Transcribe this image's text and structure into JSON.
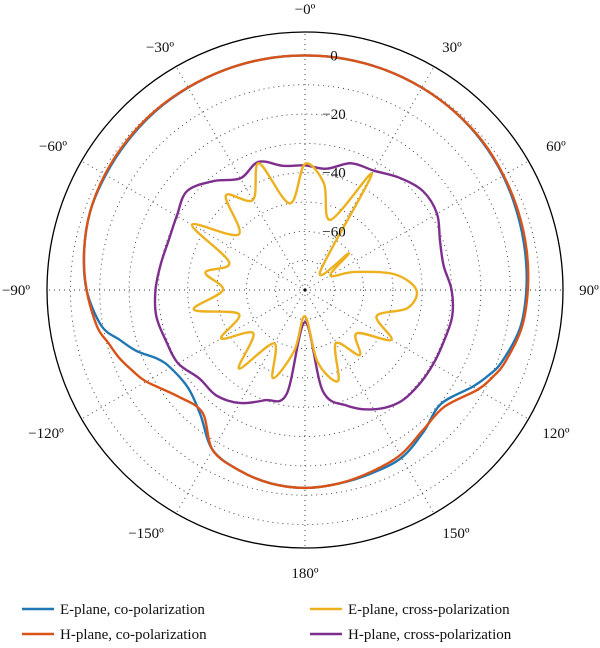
{
  "chart_data": {
    "type": "polar-line",
    "title": "",
    "angle_unit": "deg",
    "angle_ticks": [
      {
        "angle": 0,
        "label": "−0º"
      },
      {
        "angle": 30,
        "label": "30º"
      },
      {
        "angle": 60,
        "label": "60º"
      },
      {
        "angle": 90,
        "label": "90º"
      },
      {
        "angle": 120,
        "label": "120º"
      },
      {
        "angle": 150,
        "label": "150º"
      },
      {
        "angle": 180,
        "label": "180º"
      },
      {
        "angle": -150,
        "label": "−150º"
      },
      {
        "angle": -120,
        "label": "−120º"
      },
      {
        "angle": -90,
        "label": "−90º"
      },
      {
        "angle": -60,
        "label": "−60º"
      },
      {
        "angle": -30,
        "label": "−30º"
      }
    ],
    "radial_ticks": [
      {
        "value": 0,
        "label": "0"
      },
      {
        "value": -20,
        "label": "−20"
      },
      {
        "value": -40,
        "label": "−40"
      },
      {
        "value": -60,
        "label": "−60"
      }
    ],
    "r_range": [
      -80,
      8
    ],
    "radial_grid_values": [
      -70,
      -60,
      -50,
      -40,
      -30,
      -20,
      -10,
      0
    ],
    "grid": true,
    "legend": {
      "placement": "bottom",
      "entries": [
        {
          "label": "E-plane, co-polarization",
          "color": "#1f77b4"
        },
        {
          "label": "H-plane, co-polarization",
          "color": "#d95319"
        },
        {
          "label": "E-plane, cross-polarization",
          "color": "#edb120"
        },
        {
          "label": "H-plane, cross-polarization",
          "color": "#7e2f8e"
        }
      ]
    },
    "series": [
      {
        "name": "E-plane, co-polarization",
        "color": "#1f77b4",
        "theta": [
          -180,
          -170,
          -160,
          -150,
          -140,
          -130,
          -120,
          -115,
          -110,
          -105,
          -100,
          -90,
          -80,
          -70,
          -60,
          -50,
          -40,
          -30,
          -20,
          -10,
          0,
          10,
          20,
          30,
          40,
          50,
          60,
          70,
          80,
          90,
          100,
          110,
          115,
          120,
          130,
          140,
          150,
          160,
          170,
          180
        ],
        "r": [
          -12.5,
          -13,
          -14.5,
          -17,
          -24.5,
          -28,
          -27,
          -24.5,
          -19,
          -14.5,
          -9.5,
          -5.5,
          -3.5,
          -2,
          -1.5,
          -1,
          -0.5,
          -0.3,
          -0.1,
          0,
          0,
          0,
          -0.1,
          -0.3,
          -0.6,
          -1.2,
          -2,
          -3,
          -3.8,
          -4.5,
          -5.5,
          -8.5,
          -11,
          -14,
          -19.5,
          -17,
          -14,
          -13.5,
          -13,
          -12.5
        ]
      },
      {
        "name": "H-plane, co-polarization",
        "color": "#d95319",
        "theta": [
          -180,
          -170,
          -160,
          -150,
          -140,
          -130,
          -120,
          -115,
          -110,
          -105,
          -100,
          -90,
          -80,
          -70,
          -60,
          -50,
          -40,
          -30,
          -20,
          -10,
          0,
          10,
          20,
          30,
          40,
          50,
          60,
          70,
          80,
          90,
          100,
          110,
          115,
          120,
          130,
          140,
          150,
          160,
          170,
          180
        ],
        "r": [
          -12.5,
          -13,
          -14.5,
          -17,
          -25.5,
          -23.5,
          -17.5,
          -15,
          -12.5,
          -10.5,
          -8,
          -5.5,
          -3.5,
          -2,
          -1.2,
          -0.7,
          -0.3,
          -0.2,
          -0.1,
          0,
          0,
          0,
          -0.1,
          -0.3,
          -0.6,
          -1,
          -1.8,
          -2.5,
          -3.2,
          -4,
          -5,
          -7.5,
          -9.5,
          -12,
          -18,
          -17.5,
          -15,
          -14,
          -13,
          -12.5
        ]
      },
      {
        "name": "E-plane, cross-polarization",
        "color": "#edb120",
        "theta": [
          -180,
          -170,
          -160,
          -150,
          -140,
          -130,
          -120,
          -110,
          -100,
          -90,
          -80,
          -70,
          -60,
          -50,
          -40,
          -30,
          -20,
          -10,
          0,
          10,
          20,
          30,
          40,
          50,
          60,
          70,
          80,
          90,
          100,
          110,
          120,
          130,
          140,
          150,
          160,
          170,
          180
        ],
        "r": [
          -71,
          -59,
          -48,
          -59,
          -45,
          -57,
          -47,
          -56,
          -41.5,
          -52,
          -45.5,
          -52.5,
          -35.5,
          -50.5,
          -38,
          -44.5,
          -34,
          -50,
          -37,
          -43,
          -54.5,
          -34.5,
          -72,
          -60.5,
          -70,
          -62,
          -49,
          -42,
          -44.5,
          -54,
          -46,
          -57,
          -51,
          -59,
          -47,
          -55,
          -71
        ]
      },
      {
        "name": "H-plane, cross-polarization",
        "color": "#7e2f8e",
        "theta": [
          -180,
          -170,
          -160,
          -150,
          -140,
          -130,
          -120,
          -110,
          -100,
          -90,
          -80,
          -70,
          -60,
          -50,
          -40,
          -30,
          -20,
          -10,
          0,
          10,
          20,
          30,
          40,
          50,
          60,
          70,
          80,
          90,
          100,
          110,
          120,
          130,
          140,
          150,
          160,
          170,
          180
        ],
        "r": [
          -69,
          -44,
          -40,
          -35.5,
          -33,
          -33,
          -30,
          -29.5,
          -28.5,
          -29,
          -30,
          -30.5,
          -29.5,
          -27.5,
          -31.5,
          -36,
          -33.5,
          -37,
          -37.5,
          -38,
          -34,
          -33,
          -30,
          -27.5,
          -28,
          -31,
          -32,
          -30,
          -29,
          -29.5,
          -29.5,
          -29.5,
          -30,
          -33,
          -38,
          -45,
          -69
        ]
      }
    ]
  }
}
